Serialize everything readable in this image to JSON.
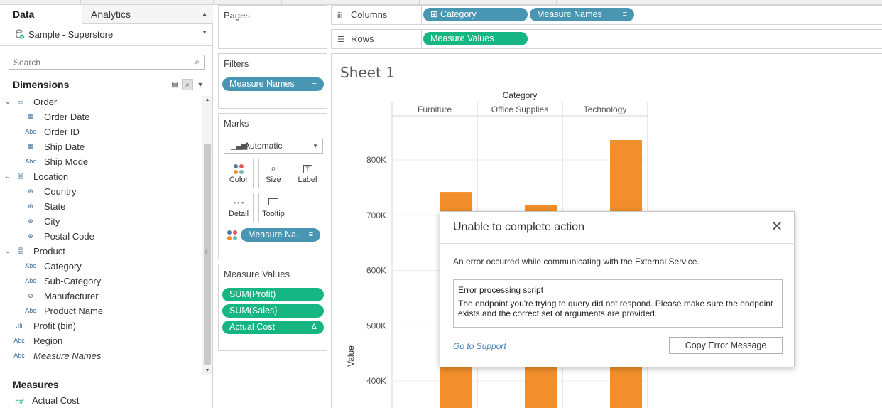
{
  "left_pane": {
    "tabs": {
      "data": "Data",
      "analytics": "Analytics"
    },
    "data_source": "Sample - Superstore",
    "search_placeholder": "Search",
    "dimensions_header": "Dimensions",
    "dimensions": [
      {
        "label": "Order",
        "icon": "folder-icon",
        "level": 0,
        "expanded": true
      },
      {
        "label": "Order Date",
        "icon": "calendar-icon",
        "level": 1
      },
      {
        "label": "Order ID",
        "icon": "abc-icon",
        "level": 1
      },
      {
        "label": "Ship Date",
        "icon": "calendar-icon",
        "level": 1
      },
      {
        "label": "Ship Mode",
        "icon": "abc-icon",
        "level": 1
      },
      {
        "label": "Location",
        "icon": "hierarchy-icon",
        "level": 0,
        "expanded": true
      },
      {
        "label": "Country",
        "icon": "globe-icon",
        "level": 1
      },
      {
        "label": "State",
        "icon": "globe-icon",
        "level": 1
      },
      {
        "label": "City",
        "icon": "globe-icon",
        "level": 1
      },
      {
        "label": "Postal Code",
        "icon": "globe-icon",
        "level": 1
      },
      {
        "label": "Product",
        "icon": "hierarchy-icon",
        "level": 0,
        "expanded": true
      },
      {
        "label": "Category",
        "icon": "abc-icon",
        "level": 1
      },
      {
        "label": "Sub-Category",
        "icon": "abc-icon",
        "level": 1
      },
      {
        "label": "Manufacturer",
        "icon": "paperclip-icon",
        "level": 1
      },
      {
        "label": "Product Name",
        "icon": "abc-icon",
        "level": 1
      },
      {
        "label": "Profit (bin)",
        "icon": "histogram-icon",
        "level": 0
      },
      {
        "label": "Region",
        "icon": "abc-icon",
        "level": 0
      },
      {
        "label": "Measure Names",
        "icon": "abc-icon",
        "level": 0,
        "italic": true
      }
    ],
    "measures_header": "Measures",
    "measures": [
      {
        "label": "Actual Cost",
        "icon": "measure-icon"
      }
    ]
  },
  "shelves": {
    "pages_title": "Pages",
    "filters_title": "Filters",
    "filters": [
      {
        "label": "Measure Names"
      }
    ],
    "marks_title": "Marks",
    "mark_type": "Automatic",
    "mark_buttons": [
      {
        "label": "Color",
        "icon": "color-icon"
      },
      {
        "label": "Size",
        "icon": "size-icon"
      },
      {
        "label": "Label",
        "icon": "label-icon"
      },
      {
        "label": "Detail",
        "icon": "detail-icon"
      },
      {
        "label": "Tooltip",
        "icon": "tooltip-icon"
      }
    ],
    "marks_pill": "Measure Na..",
    "measure_values_title": "Measure Values",
    "measure_values": [
      {
        "label": "SUM(Profit)"
      },
      {
        "label": "SUM(Sales)"
      },
      {
        "label": "Actual Cost",
        "flag": "Δ"
      }
    ],
    "columns_label": "Columns",
    "columns": [
      {
        "label": "Category",
        "prefix": "⊞"
      },
      {
        "label": "Measure Names"
      }
    ],
    "rows_label": "Rows",
    "rows": [
      {
        "label": "Measure Values"
      }
    ]
  },
  "sheet": {
    "title": "Sheet 1",
    "chart_data": {
      "type": "bar",
      "title": "",
      "column_header": "Category",
      "categories": [
        "Furniture",
        "Office Supplies",
        "Technology"
      ],
      "ylabel": "Value",
      "ylim": [
        350000,
        900000
      ],
      "y_ticks": [
        400000,
        500000,
        600000,
        700000,
        800000
      ],
      "y_tick_labels": [
        "400K",
        "500K",
        "600K",
        "700K",
        "800K"
      ],
      "series": [
        {
          "values": [
            742000,
            719000,
            836000
          ]
        }
      ],
      "bar_color": "#f28e2b",
      "grid": true
    }
  },
  "dialog": {
    "title": "Unable to complete action",
    "message": "An error occurred while communicating with the External Service.",
    "detail_title": "Error processing script",
    "detail_body": "The endpoint you're trying to query did not respond. Please make sure the endpoint exists and the correct set of arguments are provided.",
    "link": "Go to Support",
    "button": "Copy Error Message"
  },
  "colors": {
    "pill_blue": "#4996b2",
    "pill_green": "#15b682",
    "bar": "#f28e2b",
    "link": "#4a7fb0"
  }
}
